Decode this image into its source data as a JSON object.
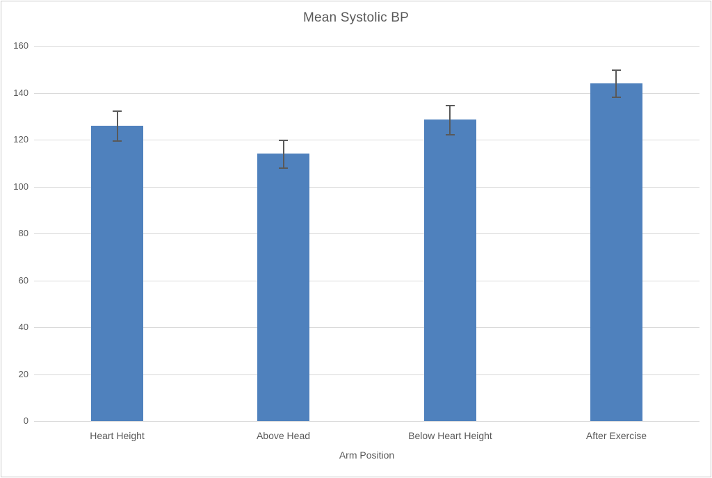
{
  "chart_data": {
    "type": "bar",
    "title": "Mean Systolic BP",
    "xlabel": "Arm Position",
    "ylabel": "",
    "categories": [
      "Heart Height",
      "Above Head",
      "Below Heart Height",
      "After Exercise"
    ],
    "values": [
      126,
      114,
      128.5,
      144
    ],
    "errors": [
      6.5,
      6,
      6.3,
      6
    ],
    "ylim": [
      0,
      160
    ],
    "ytick_step": 20,
    "yticks": [
      0,
      20,
      40,
      60,
      80,
      100,
      120,
      140,
      160
    ],
    "grid": true,
    "legend": "none",
    "colors": {
      "bar": "#4f81bd",
      "error_bar": "#595959",
      "gridline": "#d9d9d9",
      "text": "#595959",
      "frame_border": "#c9c9c9",
      "background": "#ffffff"
    }
  }
}
